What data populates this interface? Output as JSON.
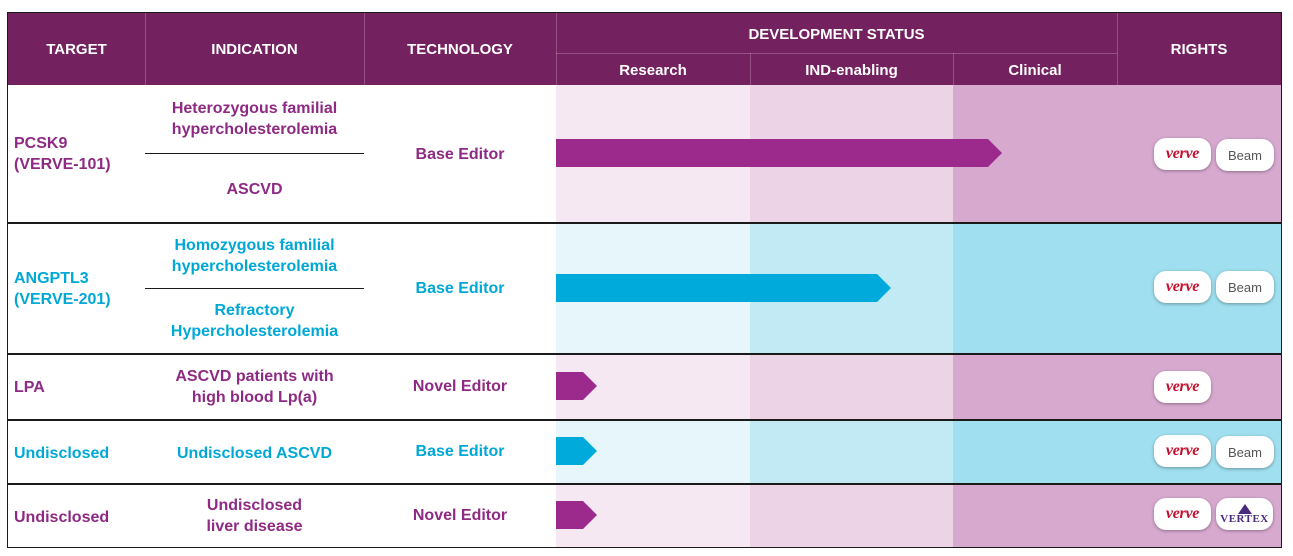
{
  "header": {
    "target": "TARGET",
    "indication": "INDICATION",
    "technology": "TECHNOLOGY",
    "development_status": "DEVELOPMENT STATUS",
    "stages": [
      "Research",
      "IND-enabling",
      "Clinical"
    ],
    "rights": "RIGHTS"
  },
  "colors": {
    "header_bg": "#74215f",
    "purple": "#8e2a83",
    "blue": "#00a8d6",
    "research_purple": "#f5e8f2",
    "ind_purple": "#ecd4e6",
    "clinical_purple": "#d7a9cf",
    "research_blue": "#e6f6fb",
    "ind_blue": "#c2eaf5",
    "clinical_blue": "#9fdfef"
  },
  "rows": [
    {
      "target_line1": "PCSK9",
      "target_line2": "(VERVE-101)",
      "indication_a_line1": "Heterozygous familial",
      "indication_a_line2": "hypercholesterolemia",
      "indication_b": "ASCVD",
      "technology": "Base Editor",
      "stage_progress": 0.85,
      "rights": [
        "verve",
        "Beam"
      ]
    },
    {
      "target_line1": "ANGPTL3",
      "target_line2": "(VERVE-201)",
      "indication_a_line1": "Homozygous familial",
      "indication_a_line2": "hypercholesterolemia",
      "indication_b_line1": "Refractory",
      "indication_b_line2": "Hypercholesterolemia",
      "technology": "Base Editor",
      "stage_progress": 0.58,
      "rights": [
        "verve",
        "Beam"
      ]
    },
    {
      "target": "LPA",
      "indication_line1": "ASCVD patients with",
      "indication_line2": "high blood Lp(a)",
      "technology": "Novel Editor",
      "stage_progress": 0.07,
      "rights": [
        "verve"
      ]
    },
    {
      "target": "Undisclosed",
      "indication": "Undisclosed ASCVD",
      "technology": "Base Editor",
      "stage_progress": 0.07,
      "rights": [
        "verve",
        "Beam"
      ]
    },
    {
      "target": "Undisclosed",
      "indication_line1": "Undisclosed",
      "indication_line2": "liver disease",
      "technology": "Novel Editor",
      "stage_progress": 0.07,
      "rights": [
        "verve",
        "VERTEX"
      ]
    }
  ]
}
